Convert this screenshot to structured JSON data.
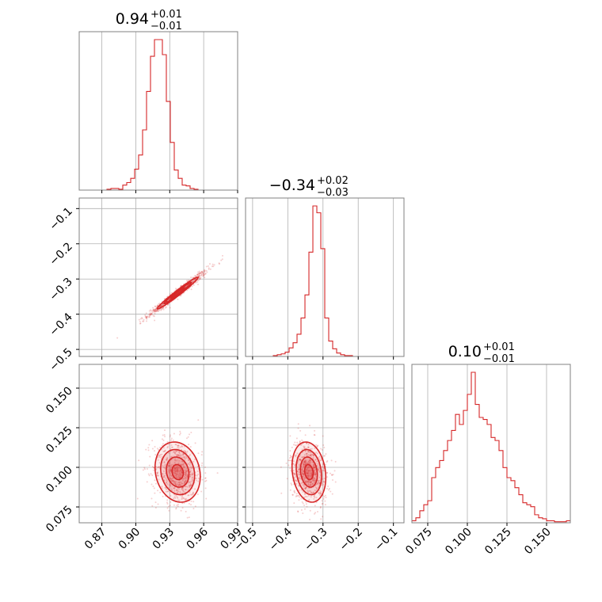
{
  "chart_data": {
    "type": "corner",
    "color": "#d62728",
    "grid": true,
    "params": [
      {
        "title": {
          "value": "0.94",
          "upper": "+0.01",
          "lower": "−0.01"
        },
        "range": [
          0.85,
          0.99
        ],
        "ticks": [
          0.87,
          0.9,
          0.93,
          0.96,
          0.99
        ],
        "tick_labels": [
          "0.87",
          "0.90",
          "0.93",
          "0.96",
          "0.99"
        ],
        "hist": {
          "start": 0.85,
          "width": 0.0035,
          "counts": [
            0,
            0,
            0,
            0,
            0,
            0,
            0,
            1,
            2,
            2,
            1,
            6,
            9,
            14,
            25,
            42,
            72,
            118,
            160,
            180,
            180,
            162,
            106,
            57,
            24,
            14,
            6,
            5,
            2,
            1,
            0,
            0,
            0,
            0,
            0,
            0,
            0,
            0,
            0,
            0
          ]
        }
      },
      {
        "title": {
          "value": "−0.34",
          "upper": "+0.02",
          "lower": "−0.03"
        },
        "range": [
          -0.52,
          -0.07
        ],
        "ticks": [
          -0.5,
          -0.4,
          -0.3,
          -0.2,
          -0.1
        ],
        "tick_labels": [
          "−0.5",
          "−0.4",
          "−0.3",
          "−0.2",
          "−0.1"
        ],
        "hist": {
          "start": -0.52,
          "width": 0.01125,
          "counts": [
            0,
            0,
            0,
            0,
            0,
            0,
            0,
            1,
            2,
            3,
            5,
            10,
            16,
            26,
            45,
            72,
            122,
            176,
            168,
            126,
            45,
            18,
            9,
            4,
            2,
            1,
            1,
            0,
            0,
            0,
            0,
            0,
            0,
            0,
            0,
            0,
            0,
            0,
            0,
            0
          ]
        }
      },
      {
        "title": {
          "value": "0.10",
          "upper": "+0.01",
          "lower": "−0.01"
        },
        "range": [
          0.065,
          0.165
        ],
        "ticks": [
          0.075,
          0.1,
          0.125,
          0.15
        ],
        "tick_labels": [
          "0.075",
          "0.100",
          "0.125",
          "0.150"
        ],
        "hist": {
          "start": 0.065,
          "width": 0.0025,
          "counts": [
            2,
            5,
            12,
            18,
            22,
            45,
            55,
            62,
            72,
            82,
            92,
            108,
            98,
            112,
            128,
            150,
            118,
            105,
            103,
            98,
            85,
            82,
            72,
            55,
            45,
            42,
            35,
            28,
            20,
            18,
            16,
            8,
            5,
            4,
            2,
            2,
            1,
            1,
            1,
            2
          ]
        }
      }
    ],
    "joint": [
      {
        "row": 1,
        "col": 0,
        "mean": [
          0.937,
          -0.34
        ],
        "sd": [
          0.012,
          0.03
        ],
        "rho": 0.98,
        "contour_levels": [
          0.5,
          1.0,
          1.5
        ]
      },
      {
        "row": 2,
        "col": 0,
        "mean": [
          0.937,
          0.097
        ],
        "sd": [
          0.01,
          0.0095
        ],
        "rho": -0.15,
        "contour_levels": [
          0.5,
          1.0,
          1.5,
          2.0
        ]
      },
      {
        "row": 2,
        "col": 1,
        "mean": [
          -0.34,
          0.097
        ],
        "sd": [
          0.024,
          0.0095
        ],
        "rho": -0.18,
        "contour_levels": [
          0.5,
          1.0,
          1.5,
          2.0
        ]
      }
    ]
  }
}
